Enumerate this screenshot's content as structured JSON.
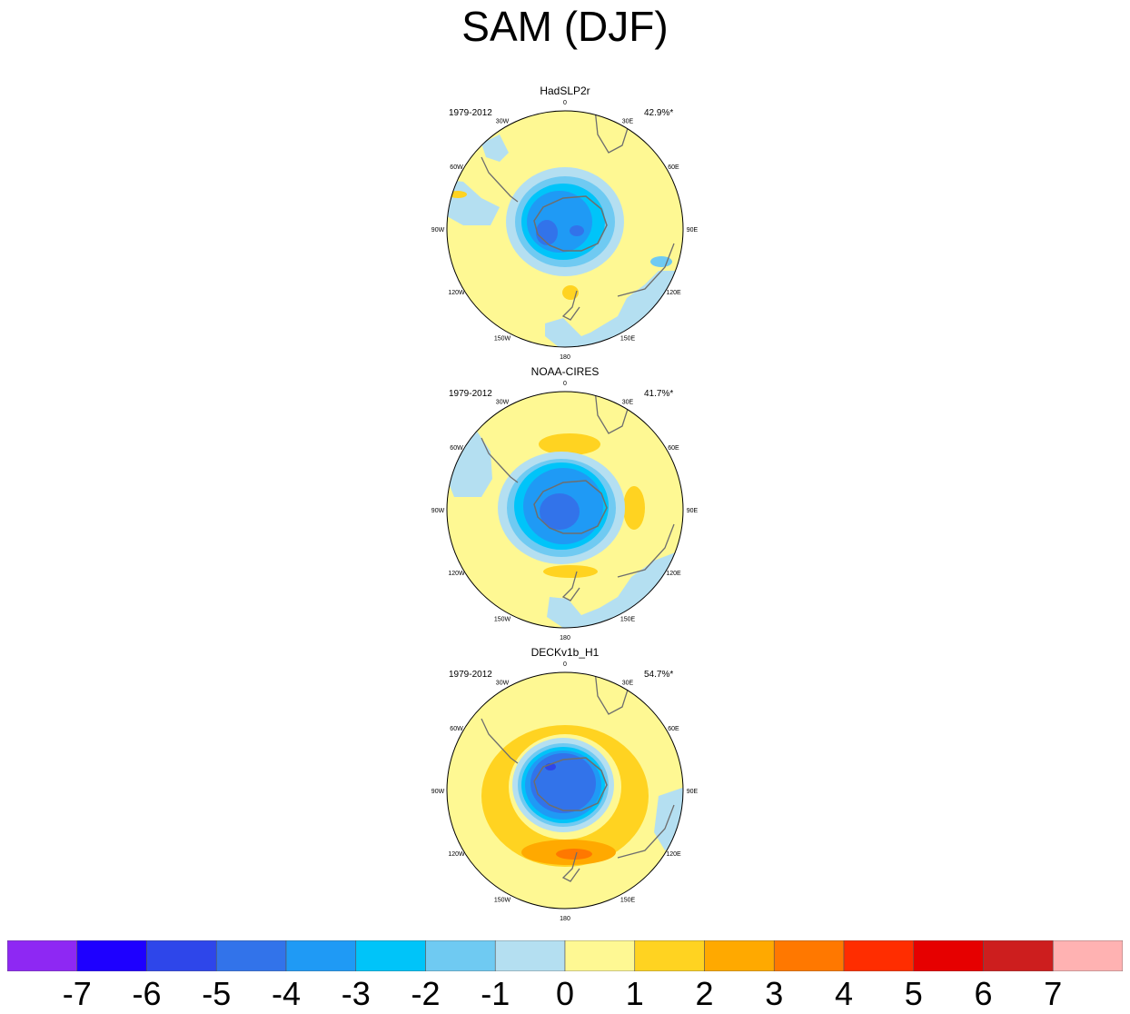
{
  "title": "SAM (DJF)",
  "panels": [
    {
      "name": "HadSLP2r",
      "period": "1979-2012",
      "variance": "42.9%*"
    },
    {
      "name": "NOAA-CIRES",
      "period": "1979-2012",
      "variance": "41.7%*"
    },
    {
      "name": "DECKv1b_H1",
      "period": "1979-2012",
      "variance": "54.7%*"
    }
  ],
  "longitude_labels": [
    "0",
    "30E",
    "60E",
    "90E",
    "120E",
    "150E",
    "180",
    "150W",
    "120W",
    "90W",
    "60W",
    "30W"
  ],
  "colorbar": {
    "colors": [
      "#8e28f3",
      "#1e00ff",
      "#2e46ea",
      "#3273ea",
      "#1f9af5",
      "#00c4f9",
      "#6fcaf2",
      "#b4dff1",
      "#fef893",
      "#ffd321",
      "#ffa900",
      "#ff7800",
      "#ff2d00",
      "#e60000",
      "#cd1e1e",
      "#ffb2b2"
    ],
    "labels": [
      "-7",
      "-6",
      "-5",
      "-4",
      "-3",
      "-2",
      "-1",
      "0",
      "1",
      "2",
      "3",
      "4",
      "5",
      "6",
      "7"
    ]
  }
}
